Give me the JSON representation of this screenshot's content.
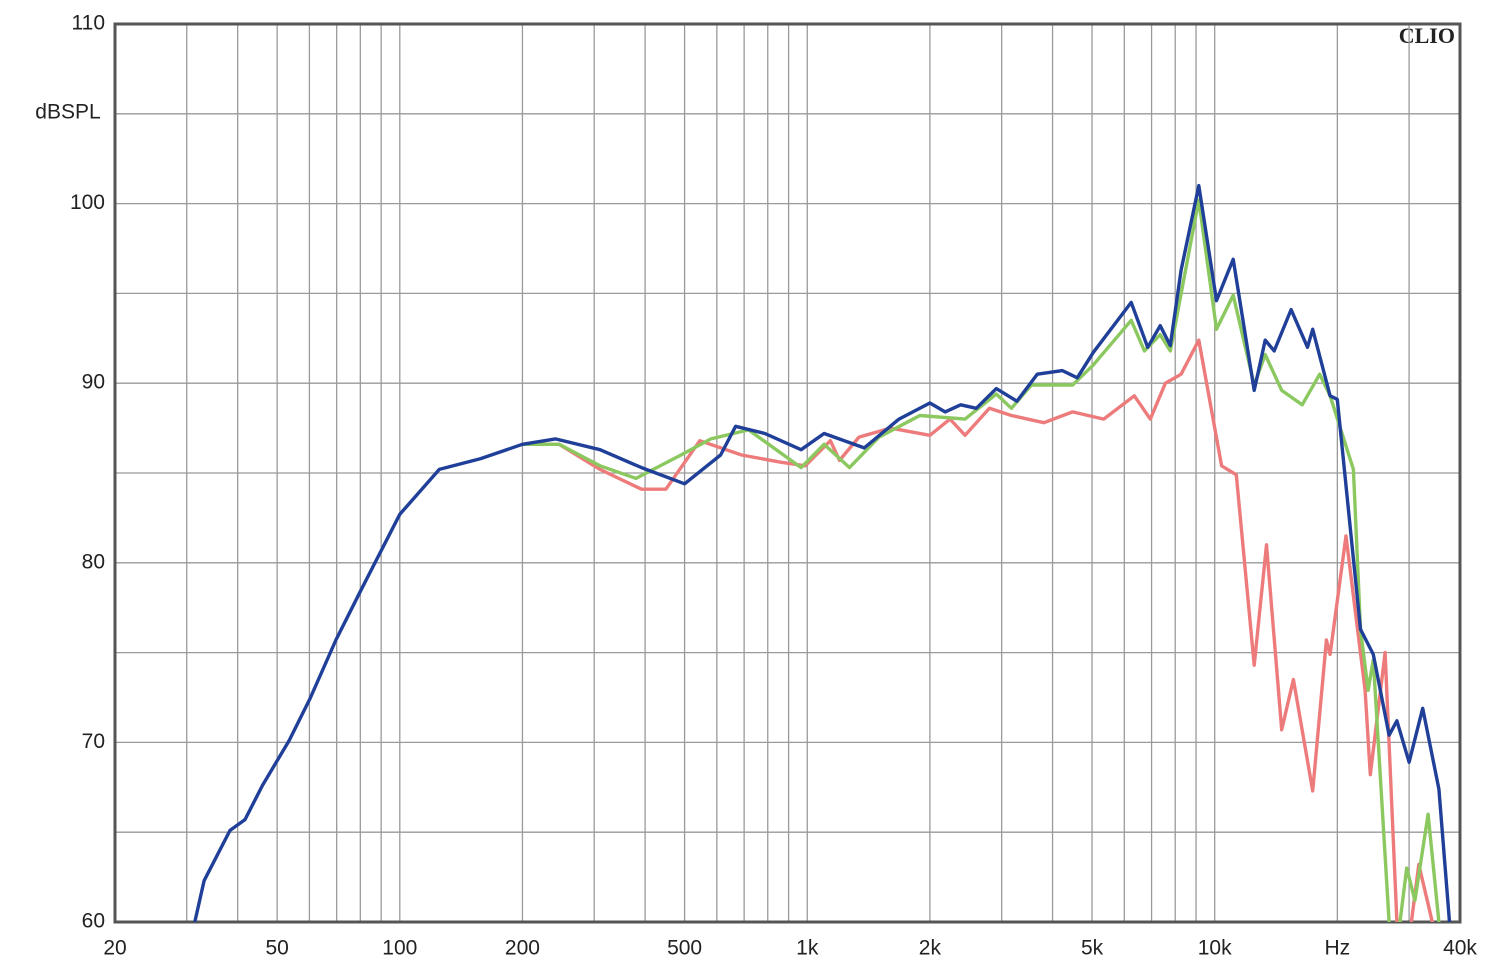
{
  "chart_data": {
    "type": "line",
    "y_label": "dBSPL",
    "annotation": "CLIO",
    "log_x": true,
    "grid": true,
    "xlim": [
      20,
      40000
    ],
    "ylim": [
      60,
      110
    ],
    "xticks": [
      20,
      50,
      100,
      200,
      500,
      {
        "value": 1000,
        "label": "1k"
      },
      {
        "value": 2000,
        "label": "2k"
      },
      {
        "value": 5000,
        "label": "5k"
      },
      {
        "value": 10000,
        "label": "10k"
      },
      {
        "value": 20000,
        "label": "Hz"
      },
      {
        "value": 40000,
        "label": "40k"
      }
    ],
    "yticks": [
      60,
      70,
      80,
      90,
      100,
      110
    ],
    "minor_xticks": [
      30,
      40,
      60,
      70,
      80,
      90,
      300,
      400,
      600,
      700,
      800,
      900,
      3000,
      4000,
      6000,
      7000,
      8000,
      9000,
      30000
    ],
    "minor_yticks": [
      65,
      75,
      85,
      95,
      105
    ],
    "series": [
      {
        "color": "#ee7b7b",
        "x": [
          200,
          246,
          310,
          392,
          450,
          545,
          690,
          860,
          989,
          1140,
          1200,
          1340,
          1600,
          2000,
          2240,
          2440,
          2800,
          3170,
          3810,
          4480,
          5340,
          6350,
          6950,
          7570,
          8270,
          9140,
          10400,
          11300,
          12500,
          13400,
          14600,
          15600,
          17400,
          18800,
          19200,
          21000,
          23400,
          24100,
          26200,
          28000,
          29500,
          30400,
          31700,
          34200
        ],
        "values": [
          86.6,
          86.6,
          85.2,
          84.1,
          84.1,
          86.8,
          86.0,
          85.6,
          85.4,
          86.8,
          85.7,
          87.0,
          87.5,
          87.1,
          88.0,
          87.1,
          88.6,
          88.2,
          87.8,
          88.4,
          88.0,
          89.3,
          88.0,
          90.0,
          90.5,
          92.4,
          85.4,
          84.9,
          74.3,
          81.0,
          70.7,
          73.5,
          67.3,
          75.7,
          74.9,
          81.5,
          72.9,
          68.2,
          75.0,
          60,
          null,
          60,
          63.2,
          60
        ]
      },
      {
        "color": "#8cc860",
        "x": [
          200,
          246,
          310,
          380,
          490,
          580,
          718,
          966,
          1100,
          1270,
          1500,
          1890,
          2440,
          2910,
          3170,
          3550,
          4480,
          5030,
          6240,
          6720,
          7350,
          7780,
          9140,
          10100,
          11100,
          12500,
          13300,
          14600,
          16400,
          18100,
          19200,
          21900,
          22800,
          23800,
          24500,
          26800,
          27500,
          28500,
          29600,
          31000,
          33400,
          35500
        ],
        "values": [
          86.6,
          86.6,
          85.4,
          84.7,
          86.0,
          86.9,
          87.4,
          85.3,
          86.6,
          85.3,
          87.0,
          88.2,
          88.0,
          89.4,
          88.6,
          89.9,
          89.9,
          91.0,
          93.5,
          91.8,
          92.7,
          91.8,
          100.2,
          93.0,
          94.9,
          89.9,
          91.6,
          89.6,
          88.8,
          90.5,
          89.3,
          85.2,
          76.3,
          72.9,
          74.6,
          60,
          null,
          60,
          63.0,
          61.2,
          66.0,
          60
        ]
      },
      {
        "color": "#1f3f99",
        "x": [
          31.4,
          33.1,
          38.3,
          41.7,
          46.0,
          53.5,
          60.1,
          69.7,
          80.4,
          100,
          125,
          158,
          200,
          241,
          310,
          392,
          500,
          613,
          667,
          787,
          966,
          1100,
          1380,
          1680,
          2000,
          2180,
          2380,
          2600,
          2910,
          3270,
          3670,
          4230,
          4600,
          5030,
          6240,
          6850,
          7350,
          7780,
          8270,
          9140,
          10100,
          11100,
          12500,
          13300,
          14000,
          15400,
          16900,
          17400,
          19200,
          20000,
          22800,
          24500,
          26800,
          28000,
          30000,
          32400,
          35500,
          37700
        ],
        "values": [
          60,
          62.3,
          65.1,
          65.7,
          67.6,
          70.1,
          72.4,
          75.7,
          78.5,
          82.7,
          85.2,
          85.8,
          86.6,
          86.9,
          86.3,
          85.3,
          84.4,
          86.0,
          87.6,
          87.2,
          86.3,
          87.2,
          86.4,
          88.0,
          88.9,
          88.4,
          88.8,
          88.6,
          89.7,
          89.0,
          90.5,
          90.7,
          90.3,
          91.7,
          94.5,
          92.0,
          93.2,
          92.1,
          96.3,
          101.0,
          94.6,
          96.9,
          89.6,
          92.4,
          91.8,
          94.1,
          92.0,
          93.0,
          89.3,
          89.1,
          76.3,
          74.9,
          70.4,
          71.2,
          68.9,
          71.9,
          67.4,
          60
        ]
      }
    ]
  }
}
